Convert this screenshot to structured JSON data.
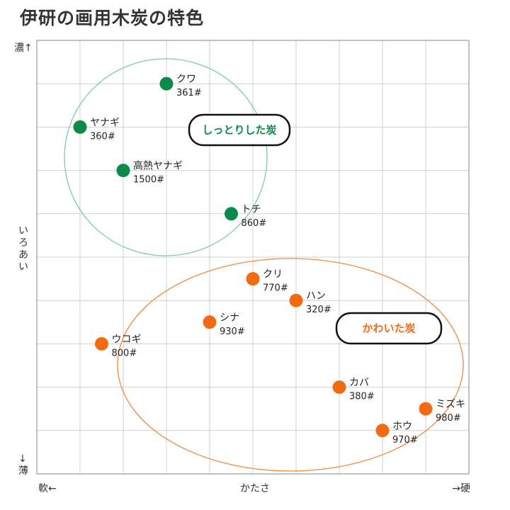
{
  "title": "伊研の画用木炭の特色",
  "chart_data": {
    "type": "scatter",
    "title": "伊研の画用木炭の特色",
    "xlabel": "かたさ",
    "x_left_label": "軟←",
    "x_right_label": "→硬",
    "ylabel": "いろあい",
    "y_top_label": "濃↑",
    "y_bottom_label": "↓薄",
    "xlim": [
      0,
      10
    ],
    "ylim": [
      0,
      10
    ],
    "grid": true,
    "groups": [
      {
        "label": "しっとりした炭",
        "color": "#0b8a4a",
        "ring_color": "#7fc9ad"
      },
      {
        "label": "かわいた炭",
        "color": "#f26a11",
        "ring_color": "#f08a3c"
      }
    ],
    "points": [
      {
        "name": "クワ",
        "code": "361#",
        "x": 3.0,
        "y": 9.0,
        "group": 0
      },
      {
        "name": "ヤナギ",
        "code": "360#",
        "x": 1.0,
        "y": 8.0,
        "group": 0
      },
      {
        "name": "高熱ヤナギ",
        "code": "1500#",
        "x": 2.0,
        "y": 7.0,
        "group": 0
      },
      {
        "name": "トチ",
        "code": "860#",
        "x": 4.5,
        "y": 6.0,
        "group": 0
      },
      {
        "name": "クリ",
        "code": "770#",
        "x": 5.0,
        "y": 4.5,
        "group": 1
      },
      {
        "name": "ハン",
        "code": "320#",
        "x": 6.0,
        "y": 4.0,
        "group": 1
      },
      {
        "name": "シナ",
        "code": "930#",
        "x": 4.0,
        "y": 3.5,
        "group": 1
      },
      {
        "name": "ウコギ",
        "code": "800#",
        "x": 1.5,
        "y": 3.0,
        "group": 1
      },
      {
        "name": "カバ",
        "code": "380#",
        "x": 7.0,
        "y": 2.0,
        "group": 1
      },
      {
        "name": "ミズキ",
        "code": "980#",
        "x": 9.0,
        "y": 1.5,
        "group": 1
      },
      {
        "name": "ホウ",
        "code": "970#",
        "x": 8.0,
        "y": 1.0,
        "group": 1
      }
    ]
  }
}
